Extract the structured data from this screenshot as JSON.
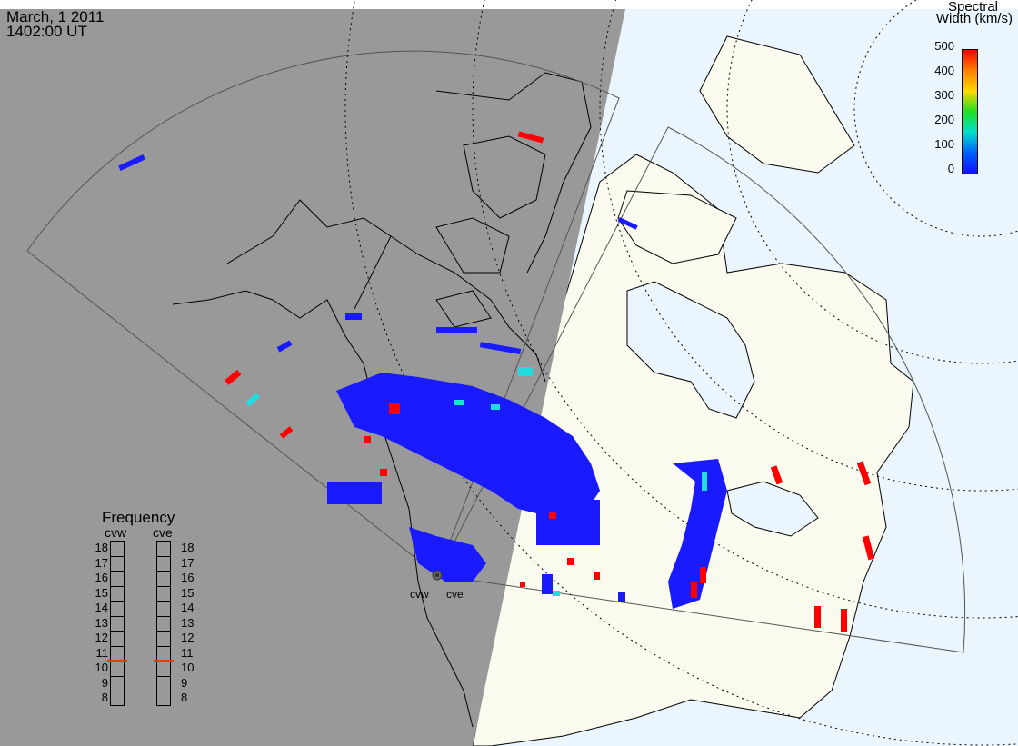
{
  "header": {
    "date": "March, 1 2011",
    "time": "1402:00 UT"
  },
  "colorbar": {
    "title_line1": "Spectral",
    "title_line2": "Width (km/s)",
    "ticks": [
      "500",
      "400",
      "300",
      "200",
      "100",
      "0"
    ],
    "stops": [
      "#ff0000",
      "#ff8000",
      "#ffd800",
      "#20e020",
      "#00e0d0",
      "#0060ff",
      "#1010ff"
    ]
  },
  "frequency": {
    "title": "Frequency",
    "radars": [
      {
        "name": "cvw",
        "value_mhz": 10.5
      },
      {
        "name": "cve",
        "value_mhz": 10.5
      }
    ],
    "scale": [
      "18",
      "17",
      "16",
      "15",
      "14",
      "13",
      "12",
      "11",
      "10",
      "9",
      "8"
    ],
    "marker_color": "#e04000"
  },
  "sites": {
    "west": "cvw",
    "east": "cve"
  },
  "colors": {
    "night": "#999999",
    "land_day": "#fafaef",
    "ocean_day": "#eaf5fd",
    "echo_low": "#1a1aff",
    "echo_high": "#ff0000",
    "echo_mid": "#22dddd"
  }
}
